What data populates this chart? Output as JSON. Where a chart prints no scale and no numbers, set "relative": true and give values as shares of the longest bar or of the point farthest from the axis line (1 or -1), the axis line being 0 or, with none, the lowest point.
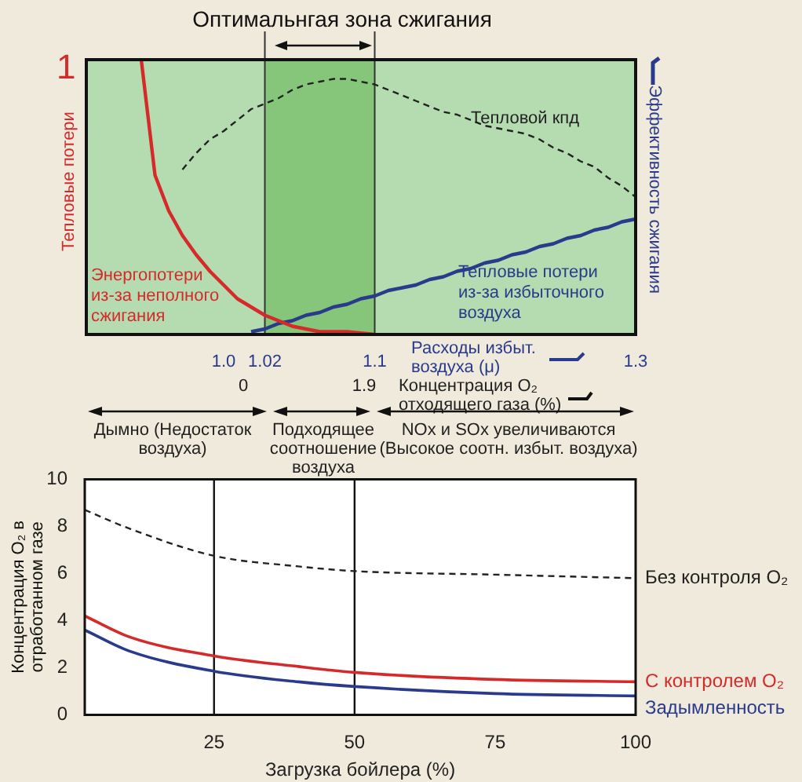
{
  "chart_data": [
    {
      "type": "line",
      "title": "Оптимальнгая зона сжигания",
      "relative": true,
      "xlabel": "Расходы избыт. воздуха (μ)",
      "ylabel": "Тепловые потери",
      "y2label": "Эффективность сжигания",
      "marker": "none",
      "categories": [
        null,
        null,
        null,
        null,
        null,
        null,
        null,
        null,
        null,
        null,
        "1.0",
        null,
        null,
        "1.02",
        null,
        null,
        null,
        null,
        null,
        null,
        null,
        "1.1",
        null,
        null,
        null,
        null,
        null,
        null,
        null,
        null,
        null,
        null,
        null,
        null,
        null,
        null,
        null,
        null,
        null,
        null,
        "1.3"
      ],
      "bands": [
        {
          "axis": "x",
          "from": "1.02",
          "to": "1.1",
          "color": "#86c67a"
        }
      ],
      "annotations": [
        "1",
        "0",
        "1.9",
        "Концентрация O₂ отходящего газа (%)",
        "Дымно (Недостаток воздуха)",
        "Подходящее соотношение воздуха",
        "NOx и SOx увеличиваются (Высокое соотн. избыт. воздуха)"
      ],
      "series": [
        {
          "name": "Энергопотери из-за неполного сжигания",
          "color": "#d62a2a",
          "line_style": "solid",
          "values": [
            null,
            null,
            null,
            null,
            1.0,
            0.58,
            0.45,
            0.36,
            0.29,
            0.23,
            0.18,
            0.13,
            0.1,
            0.07,
            0.05,
            0.03,
            0.02,
            0.01,
            0.01,
            0.01,
            0.005,
            0,
            null,
            null,
            null,
            null,
            null,
            null,
            null,
            null,
            null,
            null,
            null,
            null,
            null,
            null,
            null,
            null,
            null,
            null,
            null
          ]
        },
        {
          "name": "Тепловые потери из-за избыточного воздуха",
          "color": "#2a3a8c",
          "line_style": "solid",
          "values": [
            null,
            null,
            null,
            null,
            null,
            null,
            null,
            null,
            null,
            null,
            null,
            null,
            0.01,
            0.02,
            0.04,
            0.05,
            0.07,
            0.08,
            0.1,
            0.11,
            0.13,
            0.14,
            0.16,
            0.17,
            0.18,
            0.2,
            0.21,
            0.23,
            0.24,
            0.26,
            0.27,
            0.29,
            0.3,
            0.32,
            0.33,
            0.35,
            0.36,
            0.38,
            0.39,
            0.41,
            0.42
          ]
        },
        {
          "name": "Тепловой кпд",
          "color": "#222222",
          "line_style": "dashed",
          "values": [
            null,
            null,
            null,
            null,
            null,
            null,
            null,
            0.6,
            0.66,
            0.71,
            0.74,
            0.78,
            0.82,
            0.84,
            0.86,
            0.89,
            0.91,
            0.92,
            0.93,
            0.93,
            0.92,
            0.91,
            0.89,
            0.87,
            0.85,
            0.83,
            0.81,
            0.8,
            0.78,
            0.76,
            0.75,
            0.74,
            0.73,
            0.71,
            0.68,
            0.66,
            0.63,
            0.61,
            0.57,
            0.54,
            0.5
          ]
        }
      ]
    },
    {
      "type": "line",
      "xlabel": "Загрузка бойлера (%)",
      "ylabel": "Концентрация O₂ в отработанном газе",
      "xlim": [
        2,
        100
      ],
      "xticks": [
        25,
        50,
        75,
        100
      ],
      "ylim": [
        0,
        10
      ],
      "yticks": [
        0,
        2,
        4,
        6,
        8,
        10
      ],
      "marker": "none",
      "ref_lines": [
        {
          "axis": "x",
          "value": 25,
          "color": "#111111"
        },
        {
          "axis": "x",
          "value": 50,
          "color": "#111111"
        }
      ],
      "x": [
        2,
        10,
        25,
        40,
        50,
        75,
        100
      ],
      "series": [
        {
          "name": "Без контроля O₂",
          "color": "#222222",
          "line_style": "dashed",
          "values": [
            8.7,
            7.9,
            6.75,
            6.3,
            6.1,
            5.95,
            5.8
          ]
        },
        {
          "name": "С контролем O₂",
          "color": "#d62a2a",
          "line_style": "solid",
          "values": [
            4.2,
            3.3,
            2.5,
            2.05,
            1.8,
            1.5,
            1.4
          ]
        },
        {
          "name": "Задымленность",
          "color": "#2a3a8c",
          "line_style": "solid",
          "values": [
            3.6,
            2.7,
            1.85,
            1.4,
            1.2,
            0.9,
            0.8
          ]
        }
      ]
    }
  ]
}
